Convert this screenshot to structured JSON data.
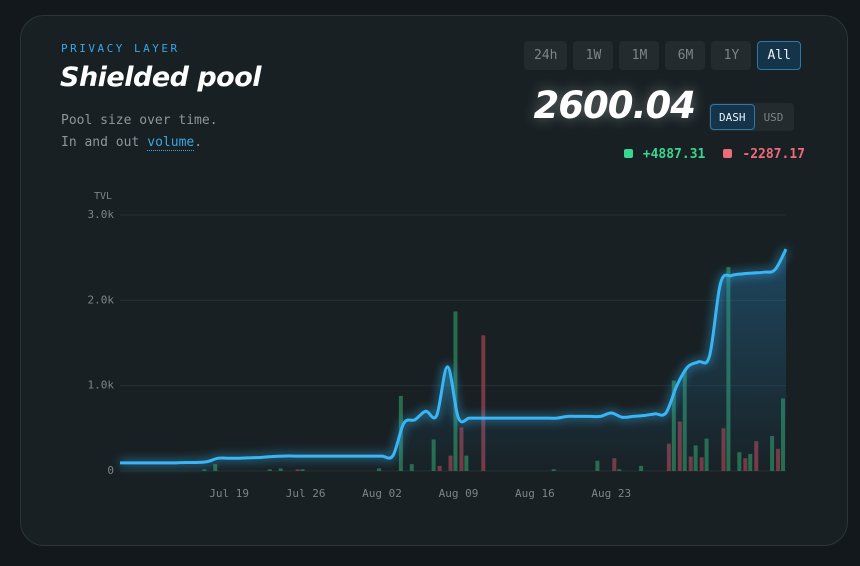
{
  "header": {
    "eyebrow": "PRIVACY LAYER",
    "title": "Shielded pool",
    "description": {
      "line1": "Pool size over time.",
      "line2_prefix": "In and out",
      "link": "volume",
      "line2_suffix": "."
    },
    "ranges": [
      "24h",
      "1W",
      "1M",
      "6M",
      "1Y",
      "All"
    ],
    "active_range": 5,
    "value": "2600.04",
    "units": [
      "DASH",
      "USD"
    ],
    "active_unit": 0,
    "inflow": "+4887.31",
    "outflow": "-2287.17"
  },
  "chart_data": {
    "type": "line",
    "y_label": "TVL",
    "categories": [
      null,
      null,
      null,
      null,
      null,
      null,
      null,
      null,
      null,
      null,
      "Jul 19",
      null,
      null,
      null,
      null,
      null,
      null,
      "Jul 26",
      null,
      null,
      null,
      null,
      null,
      null,
      "Aug 02",
      null,
      null,
      null,
      null,
      null,
      null,
      "Aug 09",
      null,
      null,
      null,
      null,
      null,
      null,
      "Aug 16",
      null,
      null,
      null,
      null,
      null,
      null,
      "Aug 23",
      null,
      null,
      null,
      null,
      null,
      null,
      null,
      null,
      null,
      null,
      null,
      null,
      null,
      null,
      null,
      null
    ],
    "series": [
      {
        "type": "line",
        "color": "#38b6f5",
        "values": [
          95,
          95,
          95,
          95,
          95,
          95,
          100,
          100,
          110,
          150,
          150,
          150,
          155,
          160,
          170,
          175,
          175,
          175,
          175,
          175,
          175,
          175,
          175,
          175,
          175,
          180,
          560,
          600,
          700,
          650,
          1220,
          620,
          620,
          620,
          620,
          620,
          620,
          620,
          620,
          620,
          620,
          640,
          640,
          640,
          640,
          680,
          630,
          640,
          650,
          670,
          680,
          1000,
          1220,
          1280,
          1350,
          2200,
          2290,
          2310,
          2320,
          2330,
          2360,
          2600
        ]
      },
      {
        "type": "bar",
        "color": "#2a7a55",
        "values": [
          0,
          0,
          0,
          0,
          0,
          0,
          0,
          0,
          20,
          80,
          0,
          0,
          0,
          0,
          20,
          30,
          0,
          20,
          0,
          0,
          0,
          0,
          0,
          0,
          30,
          0,
          880,
          80,
          0,
          370,
          0,
          1870,
          180,
          0,
          0,
          0,
          0,
          0,
          0,
          0,
          20,
          0,
          0,
          0,
          120,
          0,
          20,
          0,
          60,
          0,
          0,
          1060,
          1170,
          300,
          380,
          0,
          2390,
          220,
          200,
          0,
          410,
          850
        ]
      },
      {
        "type": "bar",
        "color": "#8a3d4a",
        "values": [
          0,
          0,
          0,
          0,
          0,
          0,
          0,
          0,
          0,
          0,
          0,
          0,
          0,
          0,
          0,
          0,
          20,
          0,
          0,
          0,
          0,
          0,
          0,
          0,
          0,
          0,
          0,
          0,
          0,
          60,
          180,
          510,
          0,
          1590,
          0,
          0,
          0,
          0,
          0,
          0,
          0,
          0,
          0,
          0,
          0,
          150,
          0,
          0,
          0,
          0,
          320,
          580,
          170,
          160,
          0,
          500,
          0,
          150,
          350,
          0,
          260,
          0
        ]
      }
    ],
    "ylim": [
      0,
      3000
    ],
    "yticks": [
      0,
      {
        "value": 1000,
        "label": "1.0k"
      },
      {
        "value": 2000,
        "label": "2.0k"
      },
      {
        "value": 3000,
        "label": "3.0k"
      }
    ],
    "grid": true
  }
}
